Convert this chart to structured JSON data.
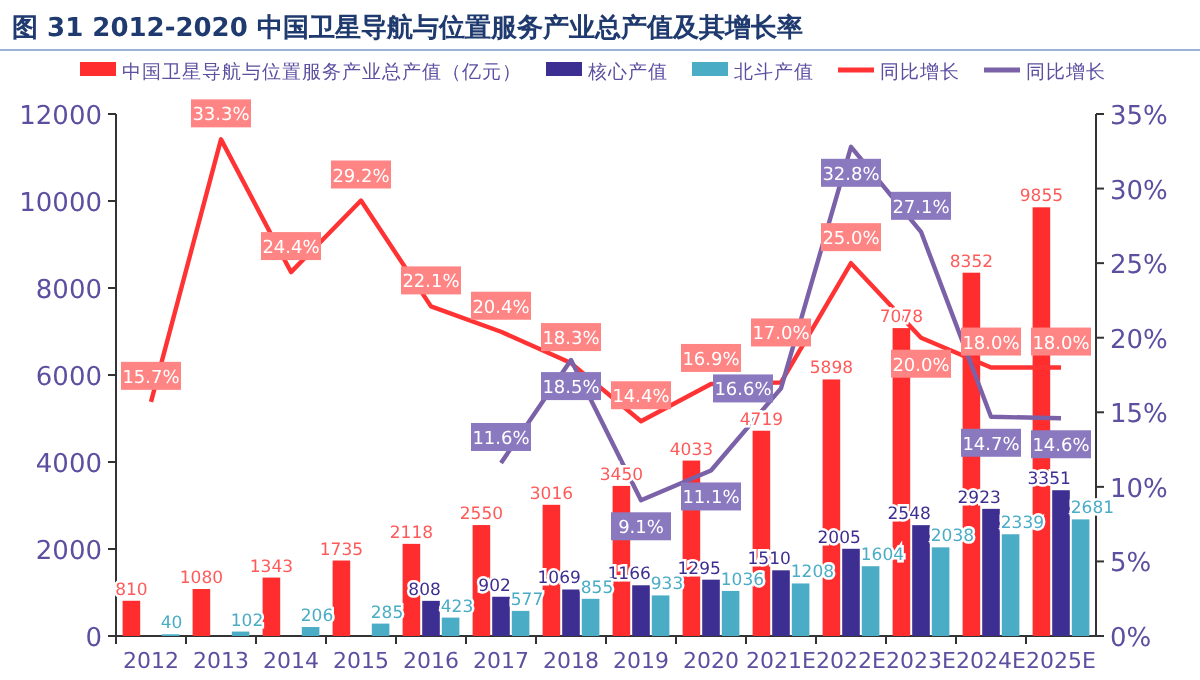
{
  "chart_data": {
    "type": "bar",
    "title": "图 31 2012-2020 中国卫星导航与位置服务产业总产值及其增长率",
    "categories": [
      "2012",
      "2013",
      "2014",
      "2015",
      "2016",
      "2017",
      "2018",
      "2019",
      "2020",
      "2021E",
      "2022E",
      "2023E",
      "2024E",
      "2025E"
    ],
    "series": [
      {
        "name": "中国卫星导航与位置服务产业总产值（亿元）",
        "color": "#ff2d2d",
        "values": [
          810,
          1080,
          1343,
          1735,
          2118,
          2550,
          3016,
          3450,
          4033,
          4719,
          5898,
          7078,
          8352,
          9855
        ],
        "value_labels": [
          "810",
          "1080",
          "1343",
          "1735",
          "2118",
          "2550",
          "3016",
          "3450",
          "4033",
          "4719",
          "5898",
          "7078",
          "8352",
          "9855"
        ]
      },
      {
        "name": "核心产值",
        "color": "#3d2f91",
        "values": [
          null,
          null,
          null,
          null,
          808,
          902,
          1069,
          1166,
          1295,
          1510,
          2005,
          2548,
          2923,
          3351
        ],
        "value_labels": [
          null,
          null,
          null,
          null,
          "808",
          "902",
          "1069",
          "1166",
          "1295",
          "1510",
          "2005",
          "2548",
          "2923",
          "3351"
        ]
      },
      {
        "name": "北斗产值",
        "color": "#4bacc6",
        "values": [
          40,
          102,
          206,
          285,
          423,
          577,
          855,
          933,
          1036,
          1208,
          1604,
          2038,
          2339,
          2681
        ],
        "value_labels": [
          "40",
          "102",
          "206",
          "285",
          "423",
          "577",
          "855",
          "933",
          "1036",
          "1208",
          "1604",
          "2038",
          "2339",
          "2681"
        ]
      },
      {
        "name": "同比增长",
        "type": "line",
        "axis": "y2",
        "color": "#ff3333",
        "values": [
          15.7,
          33.3,
          24.4,
          29.2,
          22.1,
          20.4,
          18.3,
          14.4,
          16.9,
          17.0,
          25.0,
          20.0,
          18.0,
          18.0
        ],
        "value_labels": [
          "15.7%",
          "33.3%",
          "24.4%",
          "29.2%",
          "22.1%",
          "20.4%",
          "18.3%",
          "14.4%",
          "16.9%",
          "17.0%",
          "25.0%",
          "20.0%",
          "18.0%",
          "18.0%"
        ]
      },
      {
        "name": "同比增长",
        "type": "line",
        "axis": "y2",
        "color": "#7b62a8",
        "values": [
          null,
          null,
          null,
          null,
          null,
          11.6,
          18.5,
          9.1,
          11.1,
          16.6,
          32.8,
          27.1,
          14.7,
          14.6
        ],
        "value_labels": [
          null,
          null,
          null,
          null,
          null,
          "11.6%",
          "18.5%",
          "9.1%",
          "11.1%",
          "16.6%",
          "32.8%",
          "27.1%",
          "14.7%",
          "14.6%"
        ]
      }
    ],
    "ylim": [
      0,
      12000
    ],
    "yticks": [
      0,
      2000,
      4000,
      6000,
      8000,
      10000,
      12000
    ],
    "y2lim": [
      0,
      35
    ],
    "y2ticks": [
      {
        "value": 0,
        "label": "0%"
      },
      {
        "value": 5,
        "label": "5%"
      },
      {
        "value": 10,
        "label": "10%"
      },
      {
        "value": 15,
        "label": "15%"
      },
      {
        "value": 20,
        "label": "20%"
      },
      {
        "value": 25,
        "label": "25%"
      },
      {
        "value": 30,
        "label": "30%"
      },
      {
        "value": 35,
        "label": "35%"
      }
    ],
    "legend": "top",
    "grid": false
  }
}
